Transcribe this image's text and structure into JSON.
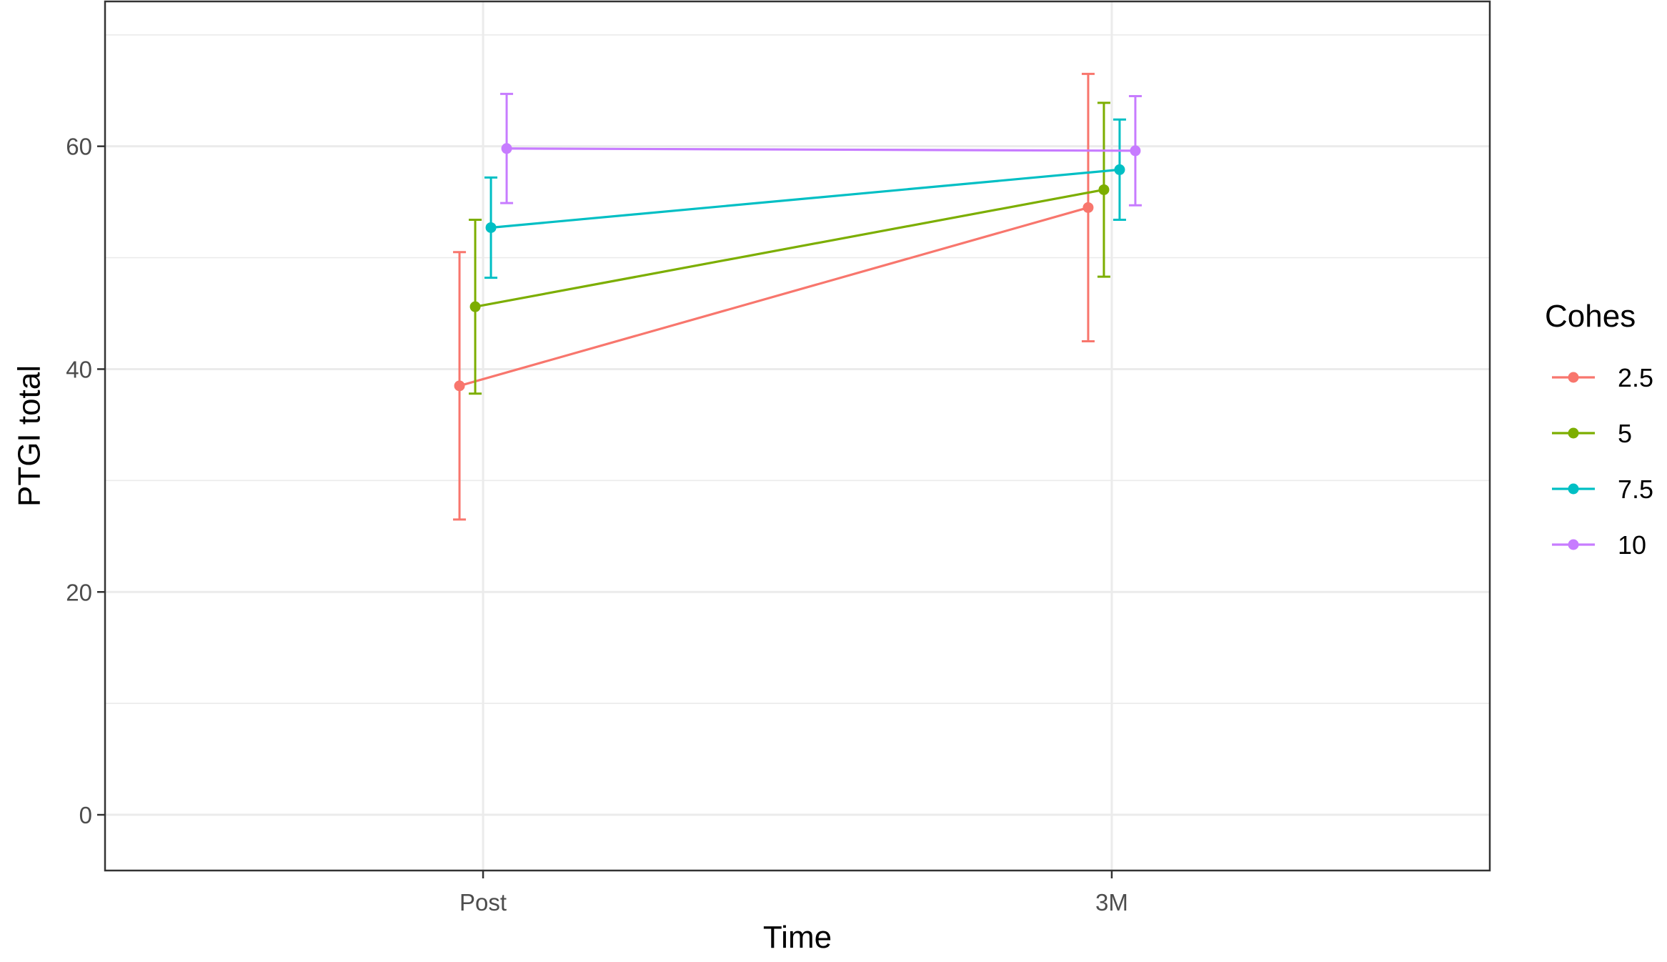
{
  "chart_data": {
    "type": "line",
    "xlabel": "Time",
    "ylabel": "PTGI total",
    "categories": [
      "Post",
      "3M"
    ],
    "ylim": [
      -5,
      73
    ],
    "yticks": [
      0,
      20,
      40,
      60
    ],
    "grid": true,
    "legend": {
      "title": "Cohes",
      "placement": "right"
    },
    "series": [
      {
        "name": "2.5",
        "color": "#F8766D",
        "values": [
          38.5,
          54.5
        ],
        "lower": [
          26.5,
          42.5
        ],
        "upper": [
          50.5,
          66.5
        ]
      },
      {
        "name": "5",
        "color": "#7CAE00",
        "values": [
          45.6,
          56.1
        ],
        "lower": [
          37.8,
          48.3
        ],
        "upper": [
          53.4,
          63.9
        ]
      },
      {
        "name": "7.5",
        "color": "#00BFC4",
        "values": [
          52.7,
          57.9
        ],
        "lower": [
          48.2,
          53.4
        ],
        "upper": [
          57.2,
          62.4
        ]
      },
      {
        "name": "10",
        "color": "#C77CFF",
        "values": [
          59.8,
          59.6
        ],
        "lower": [
          54.9,
          54.7
        ],
        "upper": [
          64.7,
          64.5
        ]
      }
    ]
  }
}
